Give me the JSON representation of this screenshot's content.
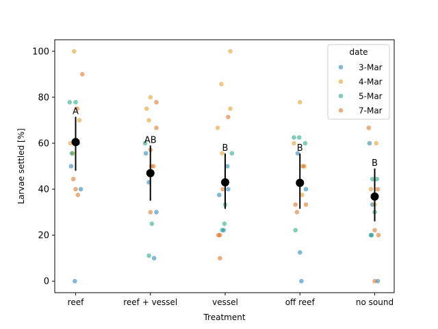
{
  "chart_data": {
    "type": "scatter",
    "xlabel": "Treatment",
    "ylabel": "Larvae settled [%]",
    "categories": [
      "reef",
      "reef + vessel",
      "vessel",
      "off reef",
      "no sound"
    ],
    "ylim": [
      -5,
      105
    ],
    "yticks": [
      0,
      20,
      40,
      60,
      80,
      100
    ],
    "grid": false,
    "legend": {
      "title": "date",
      "placement": "top-right",
      "entries": [
        "3-Mar",
        "4-Mar",
        "5-Mar",
        "7-Mar"
      ]
    },
    "colors": {
      "3-Mar": "#0173b2",
      "4-Mar": "#de8f05",
      "5-Mar": "#029e73",
      "7-Mar": "#d55e00",
      "mean": "#000000"
    },
    "series": [
      {
        "name": "3-Mar",
        "points": [
          {
            "x": "reef",
            "jitter": -0.06,
            "y": 50
          },
          {
            "x": "reef",
            "jitter": 0.07,
            "y": 40
          },
          {
            "x": "reef",
            "jitter": -0.01,
            "y": 0
          },
          {
            "x": "reef",
            "jitter": 0.02,
            "y": 60
          },
          {
            "x": "reef + vessel",
            "jitter": -0.06,
            "y": 55.6
          },
          {
            "x": "reef + vessel",
            "jitter": -0.02,
            "y": 43
          },
          {
            "x": "reef + vessel",
            "jitter": 0.08,
            "y": 30
          },
          {
            "x": "reef + vessel",
            "jitter": 0.05,
            "y": 10
          },
          {
            "x": "vessel",
            "jitter": 0.03,
            "y": 50
          },
          {
            "x": "vessel",
            "jitter": -0.08,
            "y": 37.5
          },
          {
            "x": "vessel",
            "jitter": 0.04,
            "y": 40
          },
          {
            "x": "vessel",
            "jitter": -0.02,
            "y": 22.2
          },
          {
            "x": "off reef",
            "jitter": -0.03,
            "y": 55.6
          },
          {
            "x": "off reef",
            "jitter": 0.08,
            "y": 40
          },
          {
            "x": "off reef",
            "jitter": 0.0,
            "y": 12.5
          },
          {
            "x": "off reef",
            "jitter": 0.02,
            "y": 0
          },
          {
            "x": "no sound",
            "jitter": -0.07,
            "y": 60
          },
          {
            "x": "no sound",
            "jitter": -0.03,
            "y": 33.3
          },
          {
            "x": "no sound",
            "jitter": -0.05,
            "y": 20
          },
          {
            "x": "no sound",
            "jitter": 0.04,
            "y": 0
          }
        ]
      },
      {
        "name": "4-Mar",
        "points": [
          {
            "x": "reef",
            "jitter": -0.02,
            "y": 100
          },
          {
            "x": "reef",
            "jitter": 0.05,
            "y": 70
          },
          {
            "x": "reef",
            "jitter": -0.07,
            "y": 60
          },
          {
            "x": "reef",
            "jitter": -0.04,
            "y": 55.6
          },
          {
            "x": "reef + vessel",
            "jitter": -0.05,
            "y": 75
          },
          {
            "x": "reef + vessel",
            "jitter": -0.02,
            "y": 70
          },
          {
            "x": "reef + vessel",
            "jitter": 0.0,
            "y": 80
          },
          {
            "x": "reef + vessel",
            "jitter": 0.01,
            "y": 50
          },
          {
            "x": "vessel",
            "jitter": 0.07,
            "y": 100
          },
          {
            "x": "vessel",
            "jitter": -0.05,
            "y": 85.7
          },
          {
            "x": "vessel",
            "jitter": 0.07,
            "y": 75
          },
          {
            "x": "vessel",
            "jitter": -0.1,
            "y": 66.7
          },
          {
            "x": "vessel",
            "jitter": -0.04,
            "y": 55.6
          },
          {
            "x": "off reef",
            "jitter": 0.0,
            "y": 77.8
          },
          {
            "x": "off reef",
            "jitter": -0.08,
            "y": 60
          },
          {
            "x": "off reef",
            "jitter": 0.06,
            "y": 50
          },
          {
            "x": "off reef",
            "jitter": 0.03,
            "y": 37.5
          },
          {
            "x": "no sound",
            "jitter": 0.02,
            "y": 60
          },
          {
            "x": "no sound",
            "jitter": -0.05,
            "y": 40
          },
          {
            "x": "no sound",
            "jitter": 0.0,
            "y": 33.3
          }
        ]
      },
      {
        "name": "5-Mar",
        "points": [
          {
            "x": "reef",
            "jitter": -0.08,
            "y": 77.8
          },
          {
            "x": "reef",
            "jitter": 0.0,
            "y": 77.8
          },
          {
            "x": "reef",
            "jitter": 0.03,
            "y": 60
          },
          {
            "x": "reef",
            "jitter": -0.05,
            "y": 55.6
          },
          {
            "x": "reef + vessel",
            "jitter": -0.07,
            "y": 60
          },
          {
            "x": "reef + vessel",
            "jitter": 0.02,
            "y": 25
          },
          {
            "x": "reef + vessel",
            "jitter": -0.02,
            "y": 11.1
          },
          {
            "x": "vessel",
            "jitter": 0.09,
            "y": 55.6
          },
          {
            "x": "vessel",
            "jitter": 0.0,
            "y": 33.3
          },
          {
            "x": "vessel",
            "jitter": -0.01,
            "y": 25
          },
          {
            "x": "vessel",
            "jitter": -0.04,
            "y": 22.2
          },
          {
            "x": "off reef",
            "jitter": -0.08,
            "y": 62.5
          },
          {
            "x": "off reef",
            "jitter": -0.01,
            "y": 62.5
          },
          {
            "x": "off reef",
            "jitter": 0.07,
            "y": 60
          },
          {
            "x": "off reef",
            "jitter": -0.06,
            "y": 22.2
          },
          {
            "x": "no sound",
            "jitter": -0.03,
            "y": 44.4
          },
          {
            "x": "no sound",
            "jitter": 0.03,
            "y": 44.4
          },
          {
            "x": "no sound",
            "jitter": 0.0,
            "y": 30
          },
          {
            "x": "no sound",
            "jitter": -0.04,
            "y": 20
          }
        ]
      },
      {
        "name": "7-Mar",
        "points": [
          {
            "x": "reef",
            "jitter": 0.09,
            "y": 90
          },
          {
            "x": "reef",
            "jitter": 0.02,
            "y": 75
          },
          {
            "x": "reef",
            "jitter": -0.03,
            "y": 44.4
          },
          {
            "x": "reef",
            "jitter": 0.0,
            "y": 40
          },
          {
            "x": "reef",
            "jitter": 0.03,
            "y": 37.5
          },
          {
            "x": "reef + vessel",
            "jitter": 0.08,
            "y": 77.8
          },
          {
            "x": "reef + vessel",
            "jitter": 0.08,
            "y": 66.7
          },
          {
            "x": "reef + vessel",
            "jitter": 0.0,
            "y": 57.1
          },
          {
            "x": "reef + vessel",
            "jitter": 0.04,
            "y": 50
          },
          {
            "x": "reef + vessel",
            "jitter": 0.0,
            "y": 30
          },
          {
            "x": "vessel",
            "jitter": 0.04,
            "y": 71.4
          },
          {
            "x": "vessel",
            "jitter": -0.03,
            "y": 40
          },
          {
            "x": "vessel",
            "jitter": -0.09,
            "y": 20
          },
          {
            "x": "vessel",
            "jitter": -0.07,
            "y": 20
          },
          {
            "x": "vessel",
            "jitter": -0.07,
            "y": 10
          },
          {
            "x": "off reef",
            "jitter": 0.04,
            "y": 50
          },
          {
            "x": "off reef",
            "jitter": 0.01,
            "y": 42.9
          },
          {
            "x": "off reef",
            "jitter": -0.06,
            "y": 33.3
          },
          {
            "x": "off reef",
            "jitter": 0.08,
            "y": 33.3
          },
          {
            "x": "off reef",
            "jitter": -0.04,
            "y": 30
          },
          {
            "x": "no sound",
            "jitter": -0.08,
            "y": 66.7
          },
          {
            "x": "no sound",
            "jitter": 0.04,
            "y": 40
          },
          {
            "x": "no sound",
            "jitter": 0.0,
            "y": 22.2
          },
          {
            "x": "no sound",
            "jitter": 0.05,
            "y": 20
          },
          {
            "x": "no sound",
            "jitter": 0.0,
            "y": 0
          }
        ]
      }
    ],
    "means": [
      {
        "x": "reef",
        "mean": 60.5,
        "low": 48,
        "high": 71.5,
        "letter": "A"
      },
      {
        "x": "reef + vessel",
        "mean": 47,
        "low": 35,
        "high": 59,
        "letter": "AB"
      },
      {
        "x": "vessel",
        "mean": 43,
        "low": 31.5,
        "high": 55.5,
        "letter": "B"
      },
      {
        "x": "off reef",
        "mean": 42.8,
        "low": 31.5,
        "high": 55.5,
        "letter": "B"
      },
      {
        "x": "no sound",
        "mean": 36.8,
        "low": 26,
        "high": 49,
        "letter": "B"
      }
    ]
  }
}
